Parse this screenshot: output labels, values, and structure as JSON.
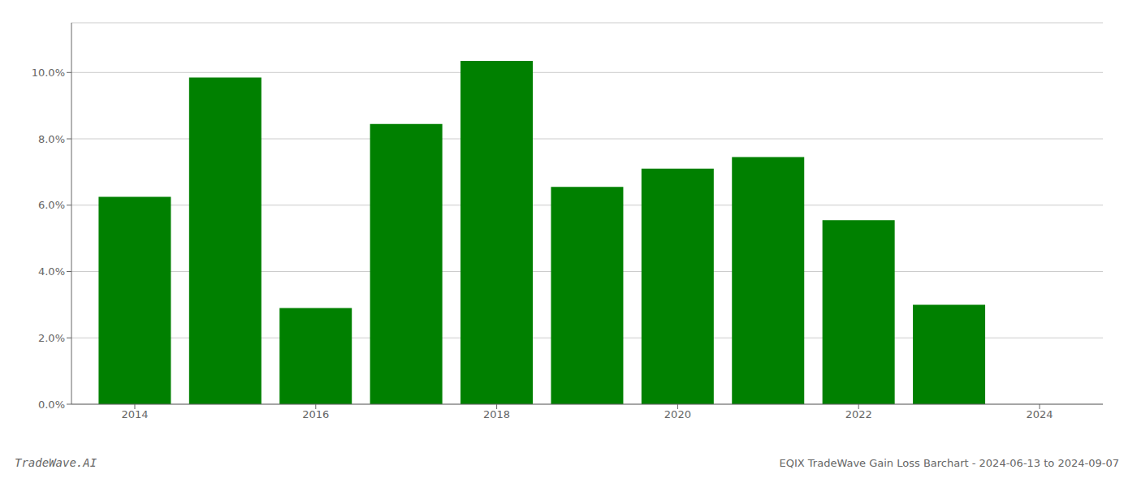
{
  "chart_data": {
    "type": "bar",
    "title": "EQIX TradeWave Gain Loss Barchart - 2024-06-13 to 2024-09-07",
    "annotations": [
      "TradeWave.AI"
    ],
    "x": [
      2014,
      2015,
      2016,
      2017,
      2018,
      2019,
      2020,
      2021,
      2022,
      2023
    ],
    "values": [
      0.0625,
      0.0985,
      0.029,
      0.0845,
      0.1035,
      0.0655,
      0.071,
      0.0745,
      0.0555,
      0.03
    ],
    "color": "#008000",
    "xlim": [
      2013.3,
      2024.7
    ],
    "xticks": [
      2014,
      2016,
      2018,
      2020,
      2022,
      2024
    ],
    "ylim": [
      0,
      0.115
    ],
    "yticks": [
      {
        "value": 0.0,
        "label": "0.0%"
      },
      {
        "value": 0.02,
        "label": "2.0%"
      },
      {
        "value": 0.04,
        "label": "4.0%"
      },
      {
        "value": 0.06,
        "label": "6.0%"
      },
      {
        "value": 0.08,
        "label": "8.0%"
      },
      {
        "value": 0.1,
        "label": "10.0%"
      }
    ],
    "grid": true
  }
}
